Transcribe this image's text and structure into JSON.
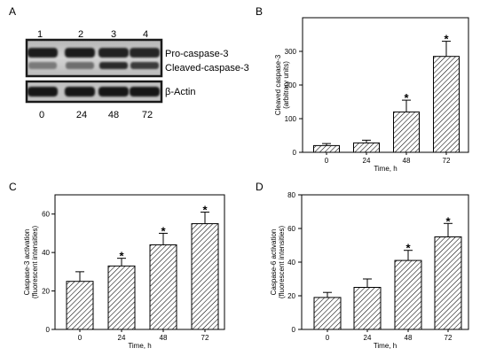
{
  "panel_a": {
    "label": "A",
    "lane_numbers": [
      "1",
      "2",
      "3",
      "4"
    ],
    "time_labels": [
      "0",
      "24",
      "48",
      "72"
    ],
    "band_labels": {
      "pro": "Pro-caspase-3",
      "cleaved": "Cleaved-caspase-3",
      "actin": "β-Actin"
    }
  },
  "colors": {
    "bar_fill": "#ffffff",
    "hatch": "#000000",
    "axis": "#000000"
  },
  "chart_data": [
    {
      "panel": "B",
      "type": "bar",
      "bar_style": "diagonal-hatch",
      "categories": [
        "0",
        "24",
        "48",
        "72"
      ],
      "values": [
        20,
        28,
        120,
        285
      ],
      "errors": [
        6,
        8,
        35,
        45
      ],
      "significant": [
        false,
        false,
        true,
        true
      ],
      "significance_marker": "*",
      "xlabel": "Time, h",
      "ylabel": [
        "Cleaved caspase-3",
        "(arbitrary units)"
      ],
      "ylim": [
        0,
        400
      ],
      "yticks": [
        0,
        100,
        200,
        300
      ],
      "grid": false
    },
    {
      "panel": "C",
      "type": "bar",
      "bar_style": "diagonal-hatch",
      "categories": [
        "0",
        "24",
        "48",
        "72"
      ],
      "values": [
        25,
        33,
        44,
        55
      ],
      "errors": [
        5,
        4,
        6,
        6
      ],
      "significant": [
        false,
        true,
        true,
        true
      ],
      "significance_marker": "*",
      "xlabel": "Time, h",
      "ylabel": [
        "Caspase-3 activation",
        "(fluorescent intensities)"
      ],
      "ylim": [
        0,
        70
      ],
      "yticks": [
        0,
        20,
        40,
        60
      ],
      "grid": false
    },
    {
      "panel": "D",
      "type": "bar",
      "bar_style": "diagonal-hatch",
      "categories": [
        "0",
        "24",
        "48",
        "72"
      ],
      "values": [
        19,
        25,
        41,
        55
      ],
      "errors": [
        3,
        5,
        6,
        8
      ],
      "significant": [
        false,
        false,
        true,
        true
      ],
      "significance_marker": "*",
      "xlabel": "Time, h",
      "ylabel": [
        "Caspase-6 activation",
        "(fluorescent intensities)"
      ],
      "ylim": [
        0,
        80
      ],
      "yticks": [
        0,
        20,
        40,
        60,
        80
      ],
      "grid": false
    }
  ]
}
